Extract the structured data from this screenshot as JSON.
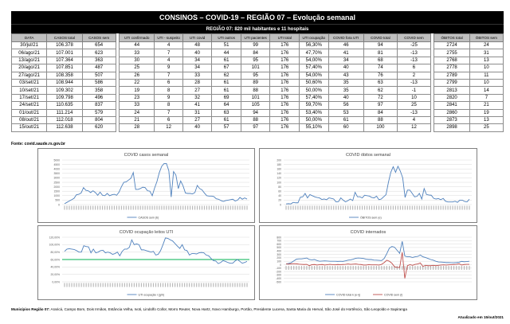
{
  "header": {
    "title": "CONSINOS – COVID-19 – REGIÃO 07 – Evolução semanal",
    "subtitle": "REGIÃO 07: 820 mil habitantes e 11 hospitais"
  },
  "table": {
    "columns": [
      "DATA",
      "CASOS total",
      "CASOS sem",
      "UTI confirmado",
      "UTI - suspeito",
      "UTI covid",
      "UTI outros",
      "UTI pacientes",
      "UTI total",
      "UTI ocupação",
      "COVID fora UTI",
      "COVID total",
      "COVID sem",
      "ÓBITOS total",
      "ÓBITOS sem"
    ],
    "rows": [
      [
        "30/jul/21",
        "106.378",
        "654",
        "44",
        "4",
        "48",
        "51",
        "99",
        "176",
        "56,30%",
        "46",
        "94",
        "-25",
        "2724",
        "24"
      ],
      [
        "06/ago/21",
        "107.001",
        "623",
        "33",
        "7",
        "40",
        "44",
        "84",
        "176",
        "47,70%",
        "41",
        "81",
        "-13",
        "2755",
        "31"
      ],
      [
        "13/ago/21",
        "107.364",
        "363",
        "30",
        "4",
        "34",
        "61",
        "95",
        "176",
        "54,00%",
        "34",
        "68",
        "-13",
        "2768",
        "13"
      ],
      [
        "20/ago/21",
        "107.851",
        "487",
        "25",
        "9",
        "34",
        "67",
        "101",
        "176",
        "57,40%",
        "40",
        "74",
        "6",
        "2778",
        "10"
      ],
      [
        "27/ago/21",
        "108.358",
        "507",
        "26",
        "7",
        "33",
        "62",
        "95",
        "176",
        "54,00%",
        "43",
        "76",
        "2",
        "2789",
        "11"
      ],
      [
        "03/set/21",
        "108.944",
        "586",
        "22",
        "6",
        "28",
        "61",
        "89",
        "176",
        "50,60%",
        "35",
        "63",
        "-13",
        "2799",
        "10"
      ],
      [
        "10/set/21",
        "109.302",
        "358",
        "19",
        "8",
        "27",
        "61",
        "88",
        "176",
        "50,00%",
        "35",
        "62",
        "-1",
        "2813",
        "14"
      ],
      [
        "17/set/21",
        "109.798",
        "496",
        "23",
        "9",
        "32",
        "69",
        "101",
        "176",
        "57,40%",
        "40",
        "72",
        "10",
        "2820",
        "7"
      ],
      [
        "24/set/21",
        "110.635",
        "837",
        "33",
        "8",
        "41",
        "64",
        "105",
        "176",
        "59,70%",
        "56",
        "97",
        "25",
        "2841",
        "21"
      ],
      [
        "01/out/21",
        "111.214",
        "579",
        "24",
        "7",
        "31",
        "63",
        "94",
        "176",
        "53,40%",
        "53",
        "84",
        "-13",
        "2860",
        "19"
      ],
      [
        "08/out/21",
        "112.018",
        "804",
        "21",
        "6",
        "27",
        "61",
        "88",
        "176",
        "50,00%",
        "61",
        "88",
        "4",
        "2873",
        "13"
      ],
      [
        "15/out/21",
        "112.638",
        "620",
        "28",
        "12",
        "40",
        "57",
        "97",
        "176",
        "55,10%",
        "60",
        "100",
        "12",
        "2898",
        "25"
      ]
    ]
  },
  "source": "Fonte: covid.saude.rs.gov.br",
  "footer": {
    "municipalities_label": "Municípios Região 07:",
    "municipalities": "Araricá, Campo Bom, Dois Irmãos, Estância Velha, Ivoti, Lindolfo Collor, Morro Reuter, Nova Hartz, Novo Hamburgo, Portão, Presidente Lucena, Santa Maria do Herval,  São José do Hortêncio, São Leopoldo e Sapiranga",
    "updated": "Atualizado em 15/out/2021"
  },
  "colors": {
    "blue_series": "#4f81bd",
    "red_series": "#c0504d",
    "green_threshold": "#00b050",
    "header_bg": "#000000",
    "column_header_bg": "#bfbfbf"
  },
  "chart_data": [
    {
      "id": "casos",
      "type": "line",
      "title": "COVID casos semanal",
      "ylim": [
        0,
        5000
      ],
      "yticks": [
        "0",
        "500",
        "1000",
        "1500",
        "2000",
        "2500",
        "3000",
        "3500",
        "4000",
        "4500",
        "5000"
      ],
      "grid": true,
      "legend": "bottom",
      "series": [
        {
          "name": "CASOS sem (b)",
          "color": "#4f81bd",
          "values": [
            100,
            250,
            400,
            550,
            700,
            1100,
            1150,
            1300,
            1900,
            1600,
            1550,
            1350,
            1550,
            1350,
            1050,
            1400,
            1050,
            1000,
            1250,
            1000,
            1100,
            1150,
            1050,
            1400,
            2000,
            2500,
            2550,
            2750,
            2950,
            3600,
            1700,
            1700,
            1800,
            1950,
            1900,
            1550,
            1500,
            1000,
            1850,
            2600,
            3600,
            4300,
            4600,
            4600,
            3800,
            850,
            3700,
            3300,
            1800,
            2650,
            2100,
            1300,
            1250,
            1250,
            1200,
            1350,
            2150,
            1800,
            1650,
            1300,
            1000,
            950,
            950,
            900,
            650,
            600,
            450,
            350,
            450,
            500,
            550,
            600,
            400,
            500,
            800,
            600,
            750,
            620
          ]
        }
      ]
    },
    {
      "id": "obitos",
      "type": "line",
      "title": "COVID óbitos semanal",
      "ylim": [
        0,
        200
      ],
      "yticks": [
        "0",
        "20",
        "40",
        "60",
        "80",
        "100",
        "120",
        "140",
        "160",
        "180",
        "200"
      ],
      "grid": true,
      "legend": "bottom",
      "series": [
        {
          "name": "ÓBITOS sem (e)",
          "color": "#4f81bd",
          "values": [
            3,
            4,
            3,
            10,
            8,
            8,
            33,
            35,
            50,
            30,
            45,
            40,
            35,
            32,
            30,
            23,
            25,
            22,
            30,
            28,
            25,
            12,
            13,
            30,
            20,
            12,
            18,
            25,
            18,
            55,
            35,
            35,
            30,
            42,
            40,
            38,
            32,
            30,
            38,
            22,
            25,
            35,
            45,
            100,
            145,
            170,
            145,
            172,
            150,
            120,
            32,
            65,
            65,
            50,
            35,
            37,
            50,
            25,
            72,
            45,
            43,
            42,
            28,
            25,
            27,
            22,
            28,
            15,
            12,
            12,
            12,
            15,
            10,
            20,
            20,
            14,
            12,
            24
          ]
        }
      ]
    },
    {
      "id": "ocupacao",
      "type": "line",
      "title": "COVID ocupação leitos UTI",
      "ylim": [
        0,
        120
      ],
      "yticks": [
        "0,00%",
        "20,00%",
        "40,00%",
        "60,00%",
        "80,00%",
        "100,00%",
        "120,00%"
      ],
      "grid": true,
      "legend": "bottom",
      "threshold": {
        "value": 60,
        "color": "#00b050"
      },
      "series": [
        {
          "name": "UTI ocupação i (g/h)",
          "color": "#4f81bd",
          "values": [
            82,
            88,
            89,
            88,
            87,
            84,
            80,
            80,
            97,
            95,
            94,
            78,
            88,
            78,
            80,
            84,
            85,
            78,
            80,
            78,
            74,
            76,
            80,
            70,
            82,
            88,
            88,
            93,
            113,
            100,
            102,
            100,
            86,
            86,
            84,
            82,
            80,
            82,
            72,
            74,
            84,
            100,
            118,
            117,
            113,
            110,
            103,
            96,
            90,
            100,
            86,
            84,
            72,
            76,
            76,
            75,
            78,
            79,
            78,
            72,
            70,
            63,
            57,
            56,
            49,
            52,
            57,
            55,
            52,
            50,
            50,
            56,
            60,
            55,
            50,
            52,
            55
          ]
        }
      ]
    },
    {
      "id": "internados",
      "type": "line",
      "title": "COVID internados",
      "ylim": [
        -500,
        800
      ],
      "yticks": [
        "-500",
        "-400",
        "-300",
        "-200",
        "-100",
        "0",
        "100",
        "200",
        "300",
        "400",
        "500",
        "600",
        "700",
        "800"
      ],
      "grid": true,
      "legend": "bottom",
      "series": [
        {
          "name": "COVID total k (e+j)",
          "color": "#4f81bd",
          "values": [
            20,
            35,
            60,
            110,
            160,
            170,
            170,
            180,
            195,
            150,
            140,
            150,
            120,
            100,
            105,
            110,
            105,
            100,
            100,
            100,
            95,
            100,
            95,
            110,
            130,
            140,
            160,
            185,
            195,
            190,
            180,
            160,
            150,
            150,
            135,
            130,
            125,
            120,
            180,
            320,
            480,
            530,
            510,
            420,
            330,
            680,
            250,
            230,
            230,
            210,
            230,
            240,
            280,
            230,
            210,
            180,
            150,
            130,
            100,
            80,
            75,
            70,
            60,
            60,
            55,
            55,
            60,
            70,
            95,
            85,
            90,
            100
          ]
        },
        {
          "name": "COVID sem (l)",
          "color": "#c0504d",
          "values": [
            20,
            15,
            25,
            30,
            25,
            15,
            10,
            5,
            10,
            -30,
            0,
            5,
            -10,
            0,
            5,
            -10,
            0,
            10,
            0,
            -5,
            5,
            0,
            5,
            10,
            20,
            10,
            15,
            20,
            10,
            5,
            -10,
            -10,
            0,
            -5,
            -5,
            -5,
            -10,
            10,
            60,
            130,
            100,
            40,
            -60,
            -80,
            -80,
            360,
            -400,
            -30,
            0,
            -20,
            10,
            20,
            50,
            -50,
            -20,
            -30,
            -30,
            -20,
            -30,
            -20,
            -10,
            -5,
            -10,
            -5,
            0,
            5,
            10,
            25,
            -10,
            5,
            10,
            10
          ]
        }
      ]
    }
  ]
}
